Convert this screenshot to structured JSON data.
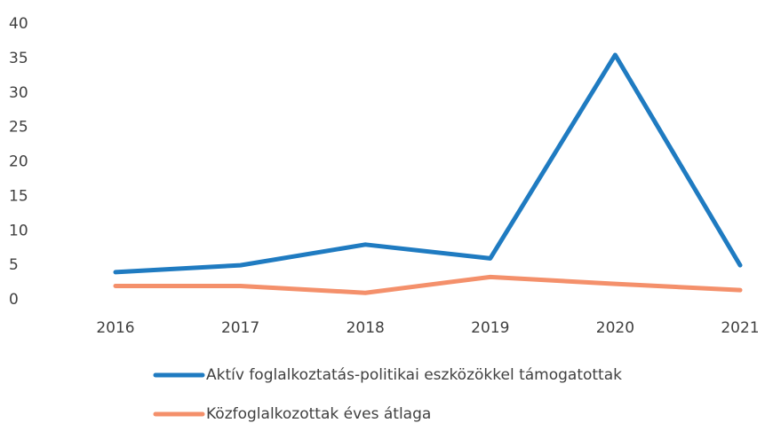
{
  "chart_data": {
    "type": "line",
    "categories": [
      "2016",
      "2017",
      "2018",
      "2019",
      "2020",
      "2021"
    ],
    "series": [
      {
        "name": "Aktív foglalkoztatás-politikai eszközökkel támogatottak",
        "color": "#1f7bc1",
        "values": [
          4,
          5,
          8,
          6,
          35.5,
          5
        ]
      },
      {
        "name": "Közfoglalkozottak éves átlaga",
        "color": "#f4906b",
        "values": [
          2,
          2,
          1,
          3.3,
          2.3,
          1.4
        ]
      }
    ],
    "ylim": [
      0,
      40
    ],
    "yticks": [
      0,
      5,
      10,
      15,
      20,
      25,
      30,
      35,
      40
    ],
    "grid": false
  }
}
